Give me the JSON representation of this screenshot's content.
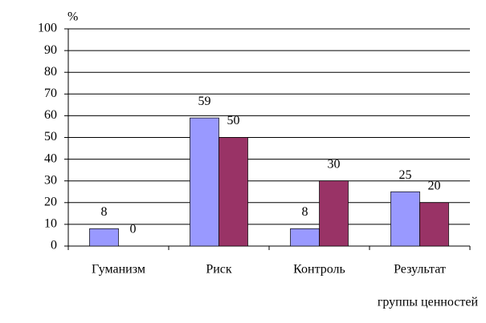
{
  "chart_data": {
    "type": "bar",
    "y_label": "%",
    "x_label": "группы ценностей",
    "categories": [
      "Гуманизм",
      "Риск",
      "Контроль",
      "Результат"
    ],
    "series": [
      {
        "color": "#9999ff",
        "values": [
          8,
          59,
          8,
          25
        ]
      },
      {
        "color": "#993366",
        "values": [
          0,
          50,
          30,
          20
        ]
      }
    ],
    "ylim": [
      0,
      100
    ],
    "yticks": [
      0,
      10,
      20,
      30,
      40,
      50,
      60,
      70,
      80,
      90,
      100
    ],
    "grid": true
  }
}
